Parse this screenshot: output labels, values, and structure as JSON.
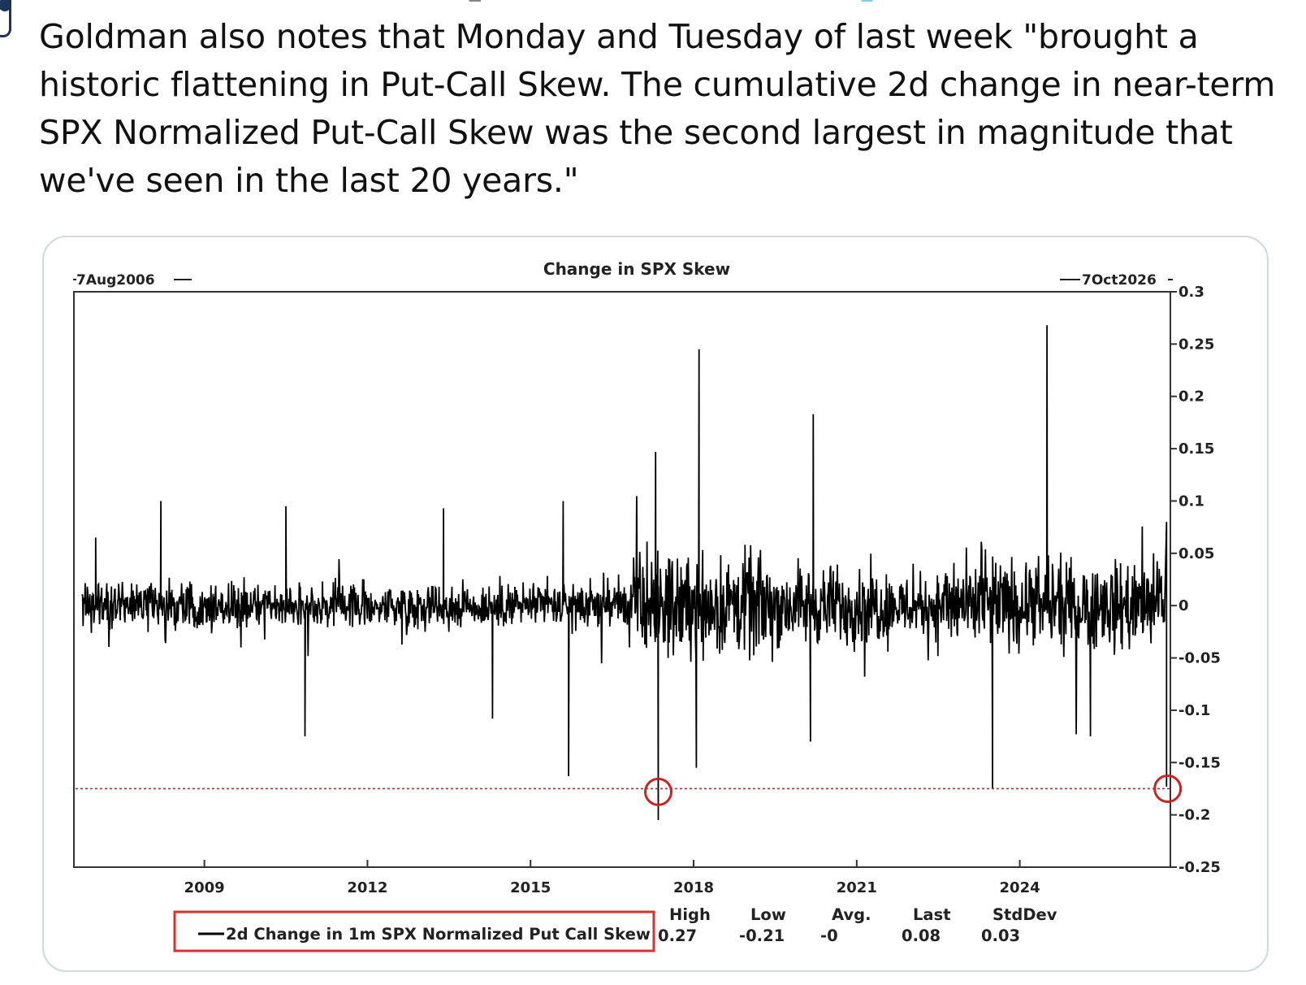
{
  "tweet": {
    "text": "Goldman also notes that Monday and Tuesday of last week \"brought a historic flattening in Put-Call Skew. The cumulative 2d change in near-term SPX Normalized Put-Call Skew was the second largest in magnitude that we've seen in the last 20 years.\""
  },
  "chart_data": {
    "type": "line",
    "title": "Change in SPX Skew",
    "start_label": "7Aug2006",
    "end_label": "7Oct2026",
    "xlabel": "",
    "ylabel": "",
    "x_tick_labels": [
      "2009",
      "2012",
      "2015",
      "2018",
      "2021",
      "2024"
    ],
    "y_tick_labels": [
      "0.3",
      "0.25",
      "0.2",
      "0.15",
      "0.1",
      "0.05",
      "0",
      "-0.05",
      "-0.1",
      "-0.15",
      "-0.2",
      "-0.25"
    ],
    "xlim": [
      2006.6,
      2026.77
    ],
    "ylim": [
      -0.25,
      0.3
    ],
    "y_axis_side": "right",
    "grid": false,
    "series": [
      {
        "name": "2d Change in 1m SPX Normalized Put Call Skew",
        "color": "#000000",
        "notable_points": [
          {
            "x": 2007.0,
            "y": 0.065
          },
          {
            "x": 2008.2,
            "y": 0.1
          },
          {
            "x": 2010.5,
            "y": 0.095
          },
          {
            "x": 2010.85,
            "y": -0.125
          },
          {
            "x": 2013.4,
            "y": 0.093
          },
          {
            "x": 2014.3,
            "y": -0.108
          },
          {
            "x": 2015.6,
            "y": 0.1
          },
          {
            "x": 2015.7,
            "y": -0.163
          },
          {
            "x": 2017.3,
            "y": 0.147
          },
          {
            "x": 2017.35,
            "y": -0.205
          },
          {
            "x": 2018.1,
            "y": 0.245
          },
          {
            "x": 2018.05,
            "y": -0.155
          },
          {
            "x": 2020.2,
            "y": 0.183
          },
          {
            "x": 2020.15,
            "y": -0.13
          },
          {
            "x": 2023.5,
            "y": -0.175
          },
          {
            "x": 2024.5,
            "y": 0.268
          },
          {
            "x": 2025.3,
            "y": -0.125
          },
          {
            "x": 2026.7,
            "y": 0.08
          },
          {
            "x": 2026.7,
            "y": -0.173
          }
        ]
      }
    ],
    "reference_line": {
      "y": -0.175,
      "color": "#cc2222",
      "style": "dotted"
    },
    "highlight_markers": [
      {
        "x": 2017.35,
        "y": -0.178,
        "color": "#cc2222"
      },
      {
        "x": 2026.72,
        "y": -0.175,
        "color": "#cc2222"
      }
    ],
    "legend": {
      "position": "bottom-left",
      "label": "2d Change in 1m SPX Normalized Put Call Skew",
      "box_color": "#d93030"
    },
    "stats": {
      "headers": [
        "High",
        "Low",
        "Avg.",
        "Last",
        "StdDev"
      ],
      "values": [
        "0.27",
        "-0.21",
        "-0",
        "0.08",
        "0.03"
      ]
    }
  }
}
